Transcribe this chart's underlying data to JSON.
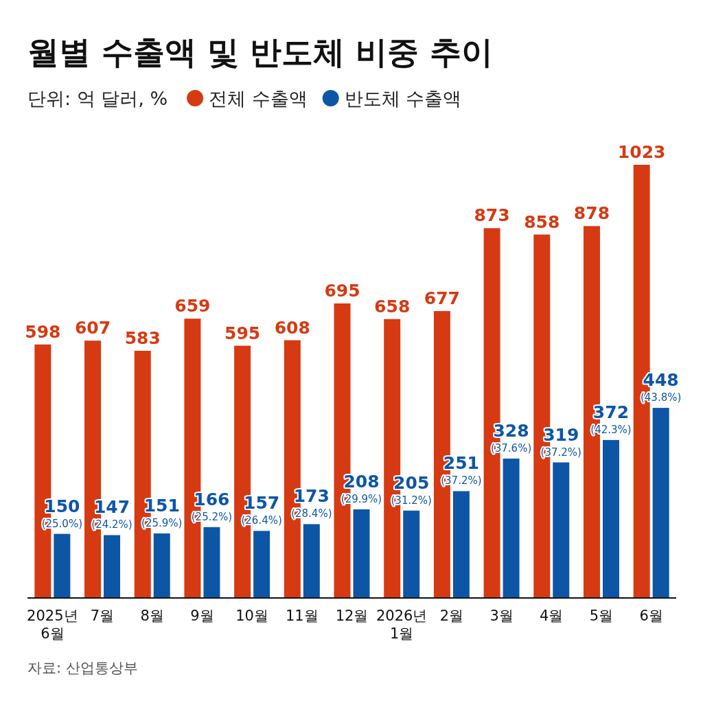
{
  "chart_data": {
    "type": "bar",
    "title": "월별 수출액 및 반도체 비중 추이",
    "subtitle": "단위: 억 달러, %",
    "categories": [
      "2025년\n6월",
      "7월",
      "8월",
      "9월",
      "10월",
      "11월",
      "12월",
      "2026년\n1월",
      "2월",
      "3월",
      "4월",
      "5월",
      "6월"
    ],
    "series": [
      {
        "name": "전체 수출액",
        "color": "#d63a12",
        "values": [
          598,
          607,
          583,
          659,
          595,
          608,
          695,
          658,
          677,
          873,
          858,
          878,
          1023
        ],
        "value_labels": [
          "598",
          "607",
          "583",
          "659",
          "595",
          "608",
          "695",
          "658",
          "677",
          "873",
          "858",
          "878",
          "1023"
        ]
      },
      {
        "name": "반도체 수출액",
        "color": "#0d56a6",
        "values": [
          150,
          147,
          151,
          166,
          157,
          173,
          208,
          205,
          251,
          328,
          319,
          372,
          448
        ],
        "value_labels": [
          "150\n(25.0%)",
          "147\n(24.2%)",
          "151\n(25.9%)",
          "166\n(25.2%)",
          "157\n(26.4%)",
          "173\n(28.4%)",
          "208\n(29.9%)",
          "205\n(31.2%)",
          "251\n(37.2%)",
          "328\n(37.6%)",
          "319\n(37.2%)",
          "372\n(42.3%)",
          "448\n(43.8%)"
        ]
      }
    ],
    "legend": "top left",
    "annotations": [
      "자료: 산업통상부"
    ]
  }
}
